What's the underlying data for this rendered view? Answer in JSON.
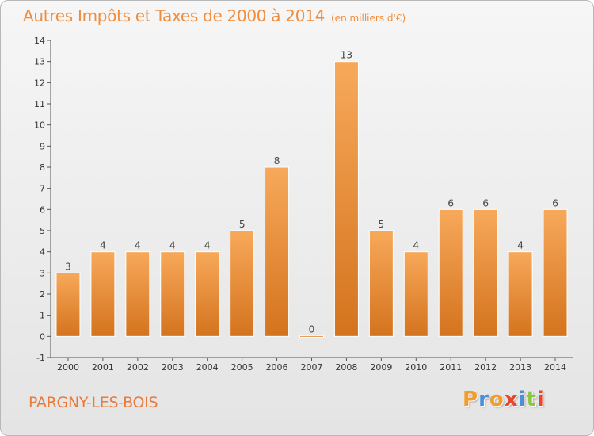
{
  "header": {
    "title": "Autres Impôts et Taxes de 2000 à 2014",
    "subtitle": "(en milliers d'€)"
  },
  "footer": {
    "location": "PARGNY-LES-BOIS",
    "logo_text": "Proxiti",
    "logo_colors": [
      "#f39c2a",
      "#4a8fd8",
      "#f39c2a",
      "#e8452c",
      "#4a8fd8",
      "#8cc63f",
      "#e8452c"
    ]
  },
  "colors": {
    "bar_top": "#f7a95a",
    "bar_bottom": "#d4731e",
    "title": "#f08c3c",
    "axis": "#555555"
  },
  "chart_data": {
    "type": "bar",
    "title": "Autres Impôts et Taxes de 2000 à 2014",
    "subtitle": "(en milliers d'€)",
    "xlabel": "",
    "ylabel": "",
    "categories": [
      "2000",
      "2001",
      "2002",
      "2003",
      "2004",
      "2005",
      "2006",
      "2007",
      "2008",
      "2009",
      "2010",
      "2011",
      "2012",
      "2013",
      "2014"
    ],
    "values": [
      3,
      4,
      4,
      4,
      4,
      5,
      8,
      0,
      13,
      5,
      4,
      6,
      6,
      4,
      6
    ],
    "data_labels": [
      "3",
      "4",
      "4",
      "4",
      "4",
      "5",
      "8",
      "0",
      "13",
      "5",
      "4",
      "6",
      "6",
      "4",
      "6"
    ],
    "yticks": [
      "-1",
      "0",
      "1",
      "2",
      "3",
      "4",
      "5",
      "6",
      "7",
      "8",
      "9",
      "10",
      "11",
      "12",
      "13",
      "14"
    ],
    "ylim": [
      -1,
      14
    ],
    "grid": false,
    "legend": "none"
  }
}
